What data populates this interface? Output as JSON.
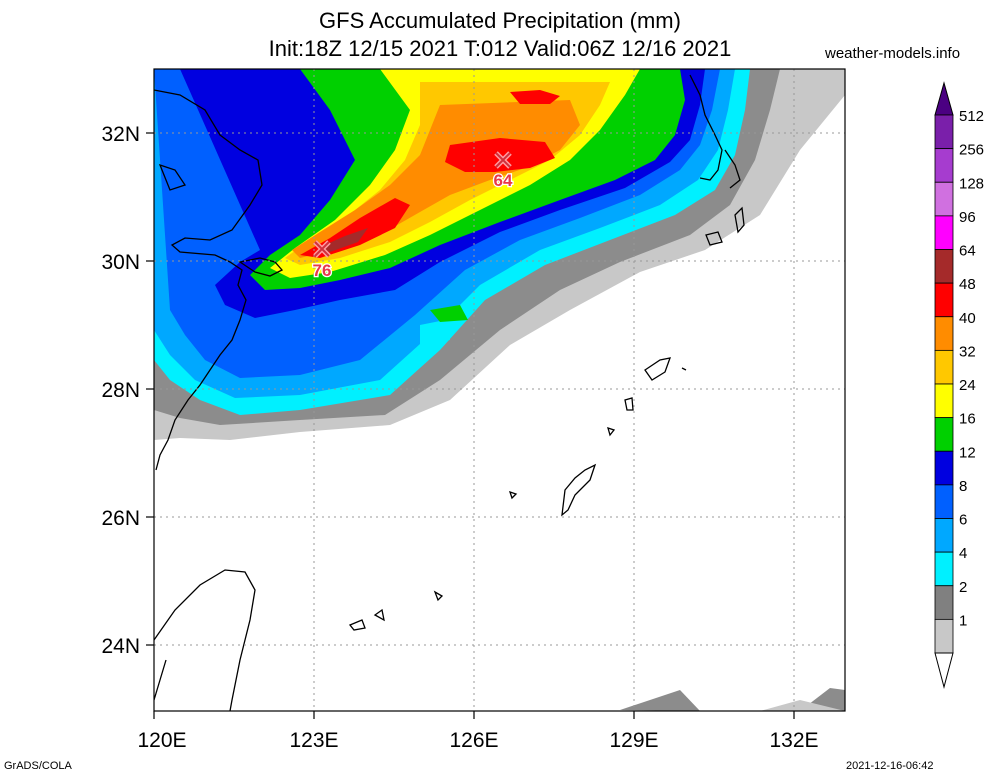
{
  "title": "GFS Accumulated Precipitation (mm)",
  "subtitle": "Init:18Z 12/15 2021 T:012 Valid:06Z 12/16 2021",
  "site": "weather-models.info",
  "credit": "GrADS/COLA",
  "timestamp": "2021-12-16-06:42",
  "lat_labels": [
    "32N",
    "30N",
    "28N",
    "26N",
    "24N"
  ],
  "lon_labels": [
    "120E",
    "123E",
    "126E",
    "129E",
    "132E"
  ],
  "colorbar": {
    "labels": [
      "512",
      "256",
      "128",
      "96",
      "64",
      "48",
      "40",
      "32",
      "24",
      "16",
      "12",
      "8",
      "6",
      "4",
      "2",
      "1"
    ],
    "colors": [
      "#7a1faa",
      "#a63ccf",
      "#d070e0",
      "#ff00ff",
      "#a52a2a",
      "#ff0000",
      "#ff8c00",
      "#ffc800",
      "#ffff00",
      "#00d000",
      "#0000e0",
      "#0060ff",
      "#00a8ff",
      "#00f0ff",
      "#808080",
      "#c8c8c8"
    ]
  },
  "maxima": [
    {
      "value": "76"
    },
    {
      "value": "64"
    }
  ]
}
